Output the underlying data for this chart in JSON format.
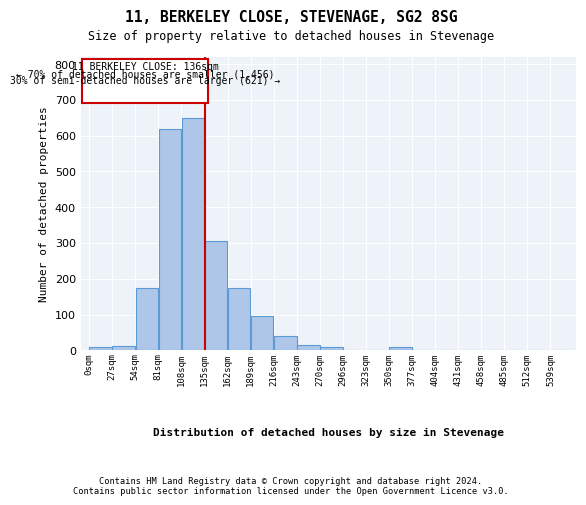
{
  "title_line1": "11, BERKELEY CLOSE, STEVENAGE, SG2 8SG",
  "title_line2": "Size of property relative to detached houses in Stevenage",
  "xlabel": "Distribution of detached houses by size in Stevenage",
  "ylabel": "Number of detached properties",
  "bin_labels": [
    "0sqm",
    "27sqm",
    "54sqm",
    "81sqm",
    "108sqm",
    "135sqm",
    "162sqm",
    "189sqm",
    "216sqm",
    "243sqm",
    "270sqm",
    "296sqm",
    "323sqm",
    "350sqm",
    "377sqm",
    "404sqm",
    "431sqm",
    "458sqm",
    "485sqm",
    "512sqm",
    "539sqm"
  ],
  "bar_heights": [
    8,
    13,
    175,
    618,
    650,
    305,
    175,
    97,
    40,
    15,
    10,
    0,
    0,
    8,
    0,
    0,
    0,
    0,
    0,
    0,
    0
  ],
  "bar_color": "#aec6e8",
  "bar_edge_color": "#5b9bd5",
  "property_sqm": 136,
  "property_label": "11 BERKELEY CLOSE: 136sqm",
  "annotation_line1": "← 70% of detached houses are smaller (1,456)",
  "annotation_line2": "30% of semi-detached houses are larger (621) →",
  "vline_color": "#cc0000",
  "annotation_box_color": "#cc0000",
  "ylim": [
    0,
    820
  ],
  "background_color": "#eef2f9",
  "grid_color": "#ffffff",
  "footer_line1": "Contains HM Land Registry data © Crown copyright and database right 2024.",
  "footer_line2": "Contains public sector information licensed under the Open Government Licence v3.0."
}
